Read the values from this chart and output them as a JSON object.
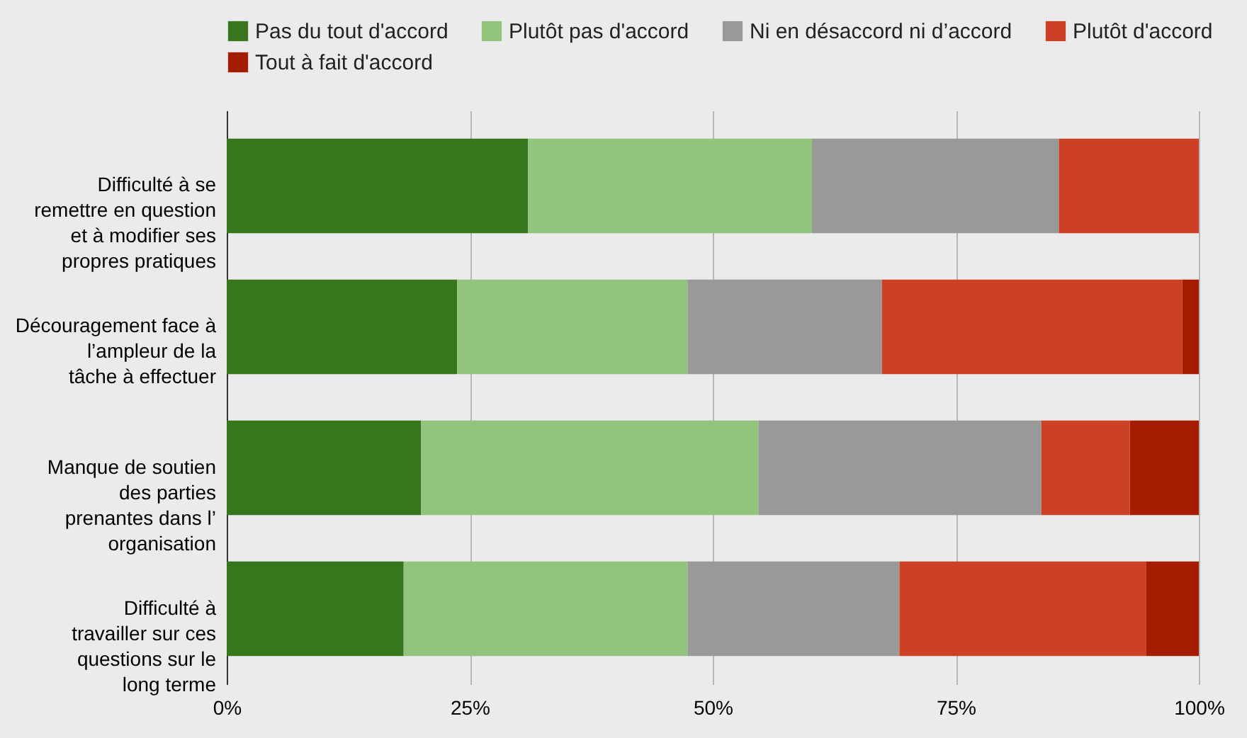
{
  "chart_data": {
    "type": "bar",
    "orientation": "horizontal",
    "stacked": true,
    "categories": [
      "Difficulté à se remettre en question et à modifier ses propres pratiques",
      "Découragement face à l’ampleur de la tâche à effectuer",
      "Manque de soutien des parties prenantes dans l’ organisation",
      "Difficulté à travailler sur ces questions sur le long terme"
    ],
    "series": [
      {
        "name": "Pas du tout d'accord",
        "color": "#38761d",
        "values": [
          31.0,
          23.7,
          20.0,
          18.2
        ]
      },
      {
        "name": "Plutôt pas d'accord",
        "color": "#93c47d",
        "values": [
          29.2,
          23.7,
          34.7,
          29.2
        ]
      },
      {
        "name": "Ni en désaccord ni d’accord",
        "color": "#999999",
        "values": [
          25.4,
          20.0,
          29.1,
          21.8
        ]
      },
      {
        "name": "Plutôt d'accord",
        "color": "#cc4125",
        "values": [
          14.4,
          30.9,
          9.1,
          25.4
        ]
      },
      {
        "name": "Tout à fait d'accord",
        "color": "#a61c00",
        "values": [
          0,
          1.7,
          7.1,
          5.4
        ]
      }
    ],
    "xlim": [
      0,
      100
    ],
    "xticks": [
      {
        "value": 0,
        "label": "0%"
      },
      {
        "value": 25,
        "label": "25%"
      },
      {
        "value": 50,
        "label": "50%"
      },
      {
        "value": 75,
        "label": "75%"
      },
      {
        "value": 100,
        "label": "100%"
      }
    ],
    "grid": "x",
    "legend": "top"
  }
}
